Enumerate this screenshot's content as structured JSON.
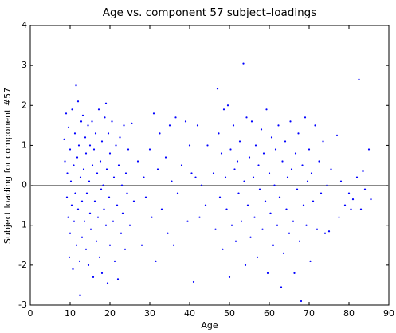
{
  "chart_data": {
    "type": "scatter",
    "title": "Age vs. component 57 subject–loadings",
    "x_label": "Age",
    "y_label": "Subject loading for component #57",
    "color": "#0000ff",
    "reference_line": 0,
    "xlim": [
      0,
      90
    ],
    "xticks": [
      0,
      10,
      20,
      30,
      40,
      50,
      60,
      70,
      80,
      90
    ],
    "ylim": [
      -3,
      4
    ],
    "yticks": [
      -3,
      -2,
      -1,
      0,
      1,
      2,
      3,
      4
    ],
    "x": [
      8.5,
      8.7,
      9,
      9.2,
      9.3,
      9.5,
      9.6,
      9.8,
      10,
      10,
      10.2,
      10.4,
      10.5,
      10.7,
      10.9,
      11,
      11.2,
      11.3,
      11.5,
      11.6,
      11.8,
      12,
      12,
      12.2,
      12.4,
      12.5,
      12.6,
      12.8,
      13,
      13,
      13.2,
      13.4,
      13.6,
      13.8,
      14,
      14,
      14.2,
      14.5,
      14.6,
      14.8,
      15,
      15,
      15.2,
      15.5,
      15.6,
      15.8,
      16,
      16.2,
      16.4,
      16.6,
      16.8,
      17,
      17.2,
      17.4,
      17.6,
      17.8,
      18,
      18,
      18.3,
      18.5,
      18.7,
      19,
      19,
      19.2,
      19.4,
      19.6,
      19.8,
      20,
      20,
      20.5,
      20.8,
      21,
      21.2,
      21.5,
      21.8,
      22,
      22.2,
      22.5,
      22.8,
      23,
      23.2,
      23.5,
      23.8,
      24,
      24.3,
      24.6,
      25,
      25.5,
      26,
      27,
      28,
      28.5,
      29,
      30,
      30.5,
      31,
      31.5,
      32,
      32.5,
      33,
      34,
      34.5,
      35,
      35.5,
      36,
      36.5,
      37,
      38,
      39,
      39.5,
      40,
      40.5,
      41,
      41.5,
      42,
      42.5,
      43,
      44,
      44.5,
      46,
      46.5,
      47,
      47.3,
      47.6,
      48,
      48.3,
      48.6,
      49,
      49.3,
      49.6,
      50,
      50.3,
      50.6,
      51,
      51.3,
      51.6,
      52,
      52.3,
      52.6,
      53,
      53.5,
      53.7,
      54,
      54.3,
      54.6,
      55,
      55.3,
      55.6,
      56,
      56.3,
      56.6,
      57,
      57.3,
      57.6,
      58,
      58.3,
      58.6,
      59,
      59.3,
      59.6,
      60,
      60.3,
      60.6,
      61,
      61.3,
      61.6,
      62,
      62.3,
      62.6,
      63,
      63.3,
      63.6,
      64,
      64.3,
      64.6,
      65,
      65.3,
      65.6,
      66,
      66.3,
      66.6,
      67,
      67.3,
      67.6,
      68,
      68.3,
      68.6,
      69,
      69.3,
      69.6,
      70,
      70.3,
      70.6,
      71,
      71.5,
      72,
      72.5,
      73,
      73.5,
      74,
      74.5,
      75,
      75.5,
      77,
      77.5,
      78,
      79,
      80,
      80.5,
      81,
      82,
      82.5,
      83,
      83.5,
      84,
      85,
      85.5
    ],
    "values": [
      1.15,
      0.6,
      1.8,
      -0.3,
      0.3,
      -0.8,
      1.45,
      -1.8,
      0.9,
      -1.2,
      0.1,
      -0.5,
      1.9,
      -2.1,
      0.5,
      -0.9,
      1.3,
      -0.2,
      2.5,
      -1.5,
      0.7,
      2.1,
      -0.6,
      1.0,
      -1.9,
      -2.75,
      0.2,
      1.6,
      -0.4,
      -1.3,
      1.75,
      0.4,
      -0.9,
      1.2,
      -1.6,
      0.8,
      -0.2,
      1.5,
      -2.0,
      0.1,
      1.0,
      -0.7,
      -1.1,
      1.6,
      0.5,
      -2.3,
      0.9,
      -0.4,
      1.3,
      -1.4,
      0.3,
      -0.8,
      1.9,
      -1.8,
      0.6,
      -0.1,
      1.1,
      -2.2,
      0.0,
      -0.6,
      1.7,
      2.05,
      -1.0,
      0.4,
      -2.45,
      1.3,
      -0.3,
      0.8,
      -1.5,
      1.6,
      -0.9,
      0.2,
      -1.9,
      1.0,
      -0.5,
      -2.35,
      0.5,
      1.2,
      -1.2,
      0.0,
      -0.7,
      1.5,
      -1.6,
      0.3,
      -0.2,
      0.9,
      -1.0,
      1.55,
      -0.4,
      0.6,
      -1.5,
      0.2,
      -0.3,
      0.9,
      -0.8,
      1.8,
      -1.9,
      0.4,
      1.3,
      -0.6,
      0.7,
      -1.2,
      1.5,
      0.1,
      -1.5,
      1.7,
      -0.2,
      0.5,
      1.6,
      -0.9,
      1.0,
      0.3,
      -2.42,
      0.2,
      1.5,
      -0.8,
      0.0,
      -0.5,
      1.0,
      0.3,
      -1.1,
      2.42,
      1.3,
      -0.3,
      0.8,
      -1.6,
      1.9,
      0.2,
      -0.6,
      2.0,
      -2.3,
      0.9,
      -1.0,
      1.5,
      0.4,
      -1.4,
      0.6,
      -0.2,
      1.1,
      -0.9,
      3.05,
      0.1,
      -2.0,
      1.7,
      -0.5,
      0.7,
      -1.3,
      1.6,
      0.2,
      -0.8,
      1.0,
      -1.8,
      0.5,
      -0.1,
      1.4,
      -1.1,
      0.8,
      -0.4,
      1.9,
      -2.2,
      0.3,
      -0.7,
      1.2,
      -1.5,
      0.0,
      0.9,
      -1.0,
      1.5,
      -0.3,
      -2.55,
      0.6,
      -1.7,
      1.1,
      -0.6,
      0.2,
      -1.2,
      1.6,
      0.4,
      -0.9,
      -2.2,
      0.8,
      -0.1,
      1.3,
      -1.4,
      -2.9,
      0.5,
      -0.5,
      1.7,
      -1.0,
      0.1,
      0.9,
      -1.9,
      0.3,
      -0.4,
      1.5,
      -1.1,
      0.6,
      -0.2,
      1.1,
      -1.2,
      0.0,
      -1.15,
      0.4,
      1.25,
      -0.8,
      0.1,
      -0.5,
      -0.2,
      -0.6,
      -0.35,
      0.2,
      2.65,
      -0.6,
      0.35,
      -0.1,
      0.9,
      -0.35
    ]
  }
}
